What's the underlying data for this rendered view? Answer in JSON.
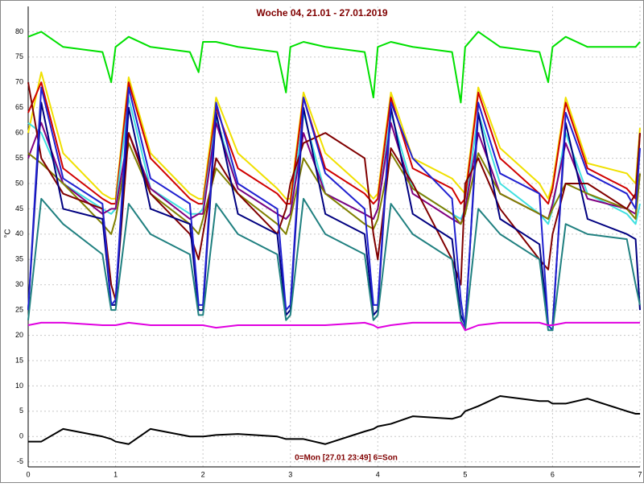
{
  "chart_data": {
    "type": "line",
    "title": "Woche 04, 21.01 - 27.01.2019",
    "annotation": "0=Mon [27.01 23:49] 6=Son",
    "y_label": "°C",
    "grid": true,
    "xlim": [
      0,
      7
    ],
    "xticks": [
      0,
      1,
      2,
      3,
      4,
      5,
      6,
      7
    ],
    "ylim": [
      -6,
      85
    ],
    "yticks": [
      -5,
      0,
      5,
      10,
      15,
      20,
      25,
      30,
      35,
      40,
      45,
      50,
      55,
      60,
      65,
      70,
      75,
      80
    ],
    "x": [
      0,
      0.15,
      0.4,
      0.85,
      0.95,
      1,
      1.15,
      1.4,
      1.85,
      1.95,
      2,
      2.15,
      2.4,
      2.85,
      2.95,
      3,
      3.15,
      3.4,
      3.85,
      3.95,
      4,
      4.15,
      4.4,
      4.85,
      4.95,
      5,
      5.15,
      5.4,
      5.85,
      5.95,
      6,
      6.15,
      6.4,
      6.85,
      6.95,
      7
    ],
    "series": [
      {
        "color": "#00e000",
        "values": [
          79,
          80,
          77,
          76,
          70,
          77,
          79,
          77,
          76,
          72,
          78,
          78,
          77,
          76,
          68,
          77,
          78,
          77,
          76,
          67,
          77,
          78,
          77,
          76,
          66,
          77,
          80,
          77,
          76,
          70,
          77,
          79,
          77,
          77,
          77,
          78
        ]
      },
      {
        "color": "#f0e000",
        "values": [
          60,
          72,
          56,
          48,
          47,
          47,
          71,
          56,
          48,
          47,
          47,
          67,
          56,
          49,
          47,
          47,
          68,
          56,
          49,
          47,
          48,
          68,
          55,
          51,
          49,
          48,
          69,
          57,
          50,
          47,
          50,
          67,
          54,
          52,
          50,
          61
        ]
      },
      {
        "color": "#d00000",
        "values": [
          64,
          70,
          53,
          47,
          46,
          46,
          70,
          55,
          47,
          46,
          46,
          65,
          53,
          48,
          46,
          46,
          67,
          53,
          48,
          46,
          47,
          67,
          53,
          49,
          46,
          47,
          68,
          55,
          48,
          46,
          49,
          66,
          53,
          49,
          47,
          60
        ]
      },
      {
        "color": "#40e0e0",
        "values": [
          62,
          60,
          50,
          45,
          44,
          45,
          67,
          49,
          44,
          44,
          45,
          63,
          49,
          44,
          43,
          44,
          64,
          48,
          44,
          43,
          45,
          64,
          49,
          44,
          43,
          45,
          64,
          50,
          44,
          42,
          45,
          60,
          48,
          44,
          42,
          46
        ]
      },
      {
        "color": "#800080",
        "values": [
          55,
          62,
          50,
          44,
          45,
          45,
          60,
          49,
          43,
          44,
          44,
          62,
          49,
          44,
          43,
          44,
          60,
          48,
          44,
          43,
          45,
          62,
          48,
          43,
          42,
          45,
          60,
          48,
          44,
          43,
          46,
          58,
          47,
          45,
          44,
          52
        ]
      },
      {
        "color": "#808000",
        "values": [
          56,
          54,
          50,
          42,
          40,
          43,
          58,
          48,
          42,
          40,
          43,
          53,
          48,
          42,
          40,
          43,
          55,
          48,
          42,
          41,
          43,
          56,
          49,
          44,
          42,
          44,
          56,
          48,
          44,
          43,
          45,
          50,
          48,
          45,
          43,
          52
        ]
      },
      {
        "color": "#800000",
        "values": [
          70,
          55,
          48,
          45,
          30,
          27,
          60,
          48,
          40,
          35,
          40,
          55,
          48,
          40,
          45,
          50,
          58,
          60,
          55,
          40,
          35,
          57,
          50,
          35,
          30,
          50,
          55,
          45,
          35,
          33,
          40,
          50,
          50,
          45,
          48,
          60
        ]
      },
      {
        "color": "#000080",
        "values": [
          25,
          66,
          45,
          43,
          26,
          26,
          65,
          45,
          42,
          25,
          25,
          64,
          44,
          40,
          24,
          25,
          65,
          44,
          40,
          24,
          25,
          65,
          44,
          39,
          24,
          22,
          64,
          43,
          38,
          22,
          22,
          62,
          43,
          40,
          39,
          25
        ]
      },
      {
        "color": "#2020d0",
        "values": [
          25,
          69,
          51,
          46,
          26,
          27,
          69,
          51,
          46,
          26,
          26,
          66,
          50,
          45,
          25,
          26,
          67,
          52,
          45,
          26,
          26,
          66,
          55,
          47,
          27,
          21,
          66,
          52,
          48,
          22,
          21,
          64,
          52,
          48,
          45,
          57
        ]
      },
      {
        "color": "#208080",
        "values": [
          23,
          47,
          42,
          36,
          25,
          25,
          46,
          40,
          36,
          24,
          24,
          46,
          40,
          36,
          23,
          24,
          47,
          40,
          36,
          23,
          24,
          46,
          40,
          35,
          23,
          21,
          45,
          40,
          35,
          21,
          21,
          42,
          40,
          39,
          30,
          26
        ]
      },
      {
        "color": "#e000e0",
        "values": [
          22,
          22.5,
          22.5,
          22,
          22,
          22,
          22.5,
          22,
          22,
          22,
          22,
          21.5,
          22,
          22,
          22,
          22,
          22,
          22,
          22.5,
          22,
          21.5,
          22,
          22.5,
          22.5,
          22.5,
          21,
          22,
          22.5,
          22.5,
          22,
          22,
          22.5,
          22.5,
          22.5,
          22.5,
          22.5
        ]
      },
      {
        "color": "#000000",
        "values": [
          -1,
          -1,
          1.5,
          0,
          -0.5,
          -1,
          -1.5,
          1.5,
          0,
          0,
          0,
          0.3,
          0.5,
          0,
          -0.5,
          -0.5,
          -0.5,
          -1.5,
          1,
          1.5,
          2,
          2.5,
          4,
          3.5,
          4,
          5,
          6,
          8,
          7,
          7,
          6.5,
          6.5,
          7.5,
          5,
          4.5,
          4.5
        ]
      }
    ]
  }
}
